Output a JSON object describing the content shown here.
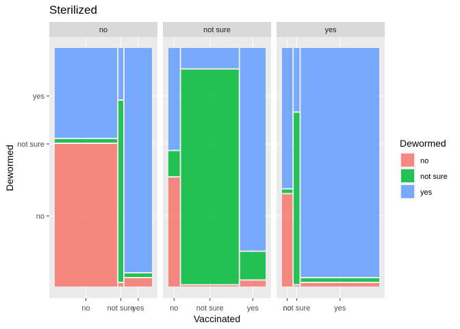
{
  "chart_data": {
    "type": "mosaic",
    "title": "Sterilized",
    "xlabel": "Vaccinated",
    "ylabel": "Dewormed",
    "facet_variable": "Sterilized",
    "facets": [
      "no",
      "not sure",
      "yes"
    ],
    "x_categories": [
      "no",
      "not sure",
      "yes"
    ],
    "y_categories": [
      "no",
      "not sure",
      "yes"
    ],
    "y_tick_labels": [
      "no",
      "not sure",
      "yes"
    ],
    "legend": {
      "title": "Dewormed",
      "position": "right",
      "entries": [
        {
          "label": "no",
          "color": "#F8766D"
        },
        {
          "label": "not sure",
          "color": "#00BA38"
        },
        {
          "label": "yes",
          "color": "#619CFF"
        }
      ]
    },
    "panels": [
      {
        "facet": "no",
        "columns": [
          {
            "vaccinated": "no",
            "width": 0.66,
            "shares": {
              "no": 0.6,
              "not sure": 0.02,
              "yes": 0.38
            }
          },
          {
            "vaccinated": "not sure",
            "width": 0.05,
            "shares": {
              "no": 0.02,
              "not sure": 0.76,
              "yes": 0.22
            }
          },
          {
            "vaccinated": "yes",
            "width": 0.29,
            "shares": {
              "no": 0.04,
              "not sure": 0.02,
              "yes": 0.94
            }
          }
        ]
      },
      {
        "facet": "not sure",
        "columns": [
          {
            "vaccinated": "no",
            "width": 0.12,
            "shares": {
              "no": 0.46,
              "not sure": 0.11,
              "yes": 0.43
            }
          },
          {
            "vaccinated": "not sure",
            "width": 0.61,
            "shares": {
              "no": 0.01,
              "not sure": 0.9,
              "yes": 0.09
            }
          },
          {
            "vaccinated": "yes",
            "width": 0.27,
            "shares": {
              "no": 0.03,
              "not sure": 0.12,
              "yes": 0.85
            }
          }
        ]
      },
      {
        "facet": "yes",
        "columns": [
          {
            "vaccinated": "no",
            "width": 0.11,
            "shares": {
              "no": 0.39,
              "not sure": 0.02,
              "yes": 0.59
            }
          },
          {
            "vaccinated": "not sure",
            "width": 0.06,
            "shares": {
              "no": 0.01,
              "not sure": 0.72,
              "yes": 0.27
            }
          },
          {
            "vaccinated": "yes",
            "width": 0.83,
            "shares": {
              "no": 0.02,
              "not sure": 0.02,
              "yes": 0.96
            }
          }
        ]
      }
    ],
    "y_tick_positions": [
      0.3,
      0.6,
      0.8
    ],
    "grid": true
  }
}
